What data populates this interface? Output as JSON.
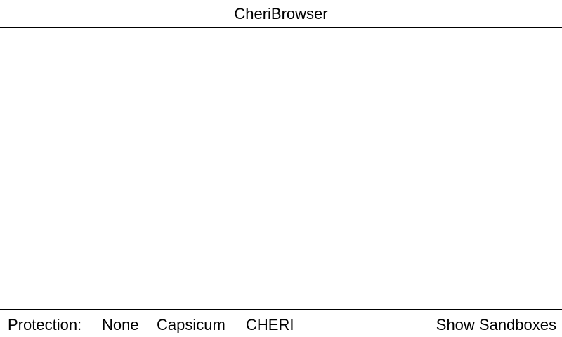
{
  "window": {
    "title": "CheriBrowser"
  },
  "bottom_bar": {
    "protection_label": "Protection:",
    "options": [
      "None",
      "Capsicum",
      "CHERI"
    ],
    "show_sandboxes_label": "Show Sandboxes"
  }
}
